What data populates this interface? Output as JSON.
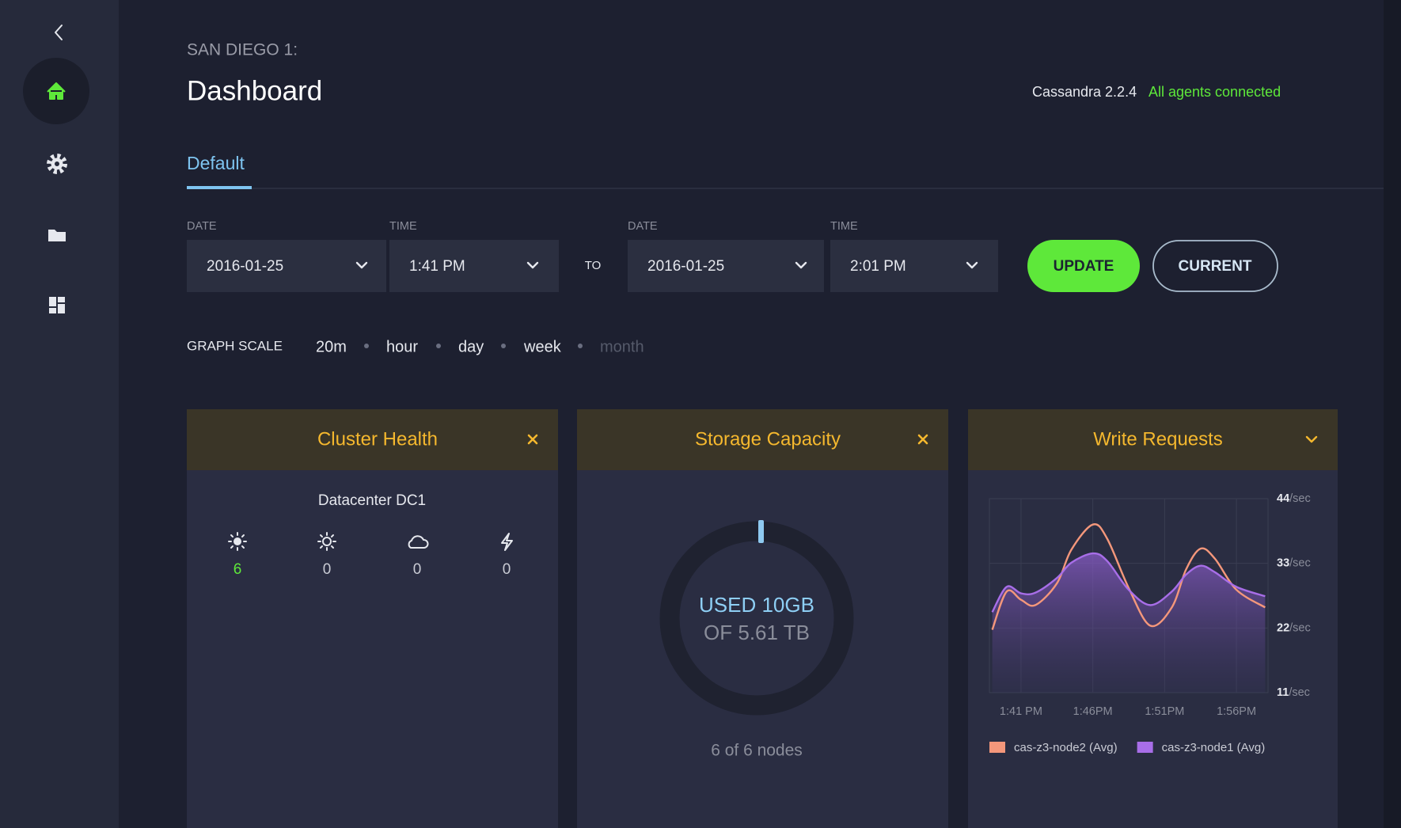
{
  "header": {
    "location": "SAN DIEGO 1:",
    "title": "Dashboard",
    "version": "Cassandra 2.2.4",
    "status": "All agents connected"
  },
  "tabs": [
    "Default"
  ],
  "range": {
    "from": {
      "date_label": "DATE",
      "date": "2016-01-25",
      "time_label": "TIME",
      "time": "1:41 PM"
    },
    "to_label": "TO",
    "to": {
      "date_label": "DATE",
      "date": "2016-01-25",
      "time_label": "TIME",
      "time": "2:01 PM"
    }
  },
  "buttons": {
    "update": "UPDATE",
    "current": "CURRENT"
  },
  "graph_scale": {
    "label": "GRAPH SCALE",
    "options": [
      "20m",
      "hour",
      "day",
      "week",
      "month"
    ]
  },
  "cluster_health": {
    "title": "Cluster Health",
    "datacenter": "Datacenter DC1",
    "counts": [
      6,
      0,
      0,
      0
    ]
  },
  "storage_capacity": {
    "title": "Storage Capacity",
    "used": "USED 10GB",
    "total": "OF 5.61 TB",
    "nodes": "6 of 6 nodes"
  },
  "chart_data": {
    "type": "line",
    "title": "Write Requests",
    "x": [
      39,
      40,
      41,
      42,
      43.5,
      44.5,
      46,
      47,
      48.5,
      50,
      51.5,
      52.5,
      53.5,
      54.5,
      56,
      58
    ],
    "xlim": [
      38.8,
      58.2
    ],
    "xticks": [
      {
        "value": 41,
        "label": "1:41 PM"
      },
      {
        "value": 46,
        "label": "1:46PM"
      },
      {
        "value": 51,
        "label": "1:51PM"
      },
      {
        "value": 56,
        "label": "1:56PM"
      }
    ],
    "ylim": [
      11,
      44
    ],
    "yticks": [
      {
        "value": 44,
        "label": "44/sec"
      },
      {
        "value": 33,
        "label": "33/sec"
      },
      {
        "value": 22,
        "label": "22/sec"
      },
      {
        "value": 11,
        "label": "11/sec"
      }
    ],
    "grid": true,
    "series": [
      {
        "name": "cas-z3-node2 (Avg)",
        "color": "#f4977b",
        "values": [
          21.7,
          28.2,
          26.8,
          25.9,
          29.6,
          35.3,
          39.6,
          37.2,
          28.8,
          22.4,
          25.5,
          32,
          35.5,
          33.8,
          28.5,
          25.5
        ]
      },
      {
        "name": "cas-z3-node1 (Avg)",
        "color": "#a86ee8",
        "values": [
          24.7,
          29,
          27.9,
          28,
          30.5,
          33.1,
          34.7,
          33.4,
          28.5,
          25.9,
          28.2,
          31.1,
          32.6,
          31.5,
          29,
          27.4
        ]
      }
    ]
  }
}
